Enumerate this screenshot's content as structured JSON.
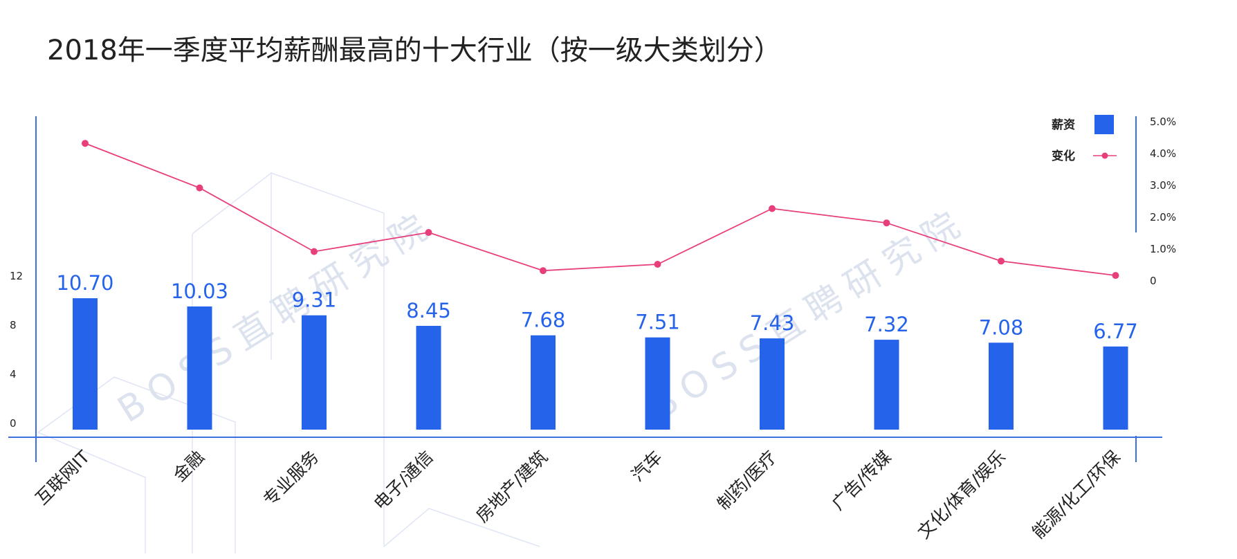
{
  "chart_data": {
    "type": "bar",
    "title": "2018年一季度平均薪酬最高的十大行业（按一级大类划分）",
    "watermark": "BOSS直聘研究院",
    "categories": [
      "互联网IT",
      "金融",
      "专业服务",
      "电子/通信",
      "房地产/建筑",
      "汽车",
      "制药/医疗",
      "广告/传媒",
      "文化/体育/娱乐",
      "能源/化工/环保"
    ],
    "value_labels": [
      "10.70",
      "10.03",
      "9.31",
      "8.45",
      "7.68",
      "7.51",
      "7.43",
      "7.32",
      "7.08",
      "6.77"
    ],
    "series": [
      {
        "name": "薪资",
        "type": "bar",
        "color": "#2563eb",
        "axis": "left",
        "values": [
          10.7,
          10.03,
          9.31,
          8.45,
          7.68,
          7.51,
          7.43,
          7.32,
          7.08,
          6.77
        ]
      },
      {
        "name": "变化",
        "type": "line",
        "color": "#e83e7c",
        "axis": "right",
        "values": [
          4.3,
          2.9,
          0.9,
          1.5,
          0.3,
          0.5,
          2.25,
          1.8,
          0.6,
          0.15
        ]
      }
    ],
    "y_left": {
      "ticks": [
        "0",
        "4",
        "8",
        "12"
      ],
      "values": [
        0,
        4,
        8,
        12
      ]
    },
    "y_right": {
      "ticks": [
        "0",
        "1.0%",
        "2.0%",
        "3.0%",
        "4.0%",
        "5.0%"
      ],
      "values": [
        0,
        1,
        2,
        3,
        4,
        5
      ]
    },
    "legend_position": "top-right",
    "grid": false
  }
}
